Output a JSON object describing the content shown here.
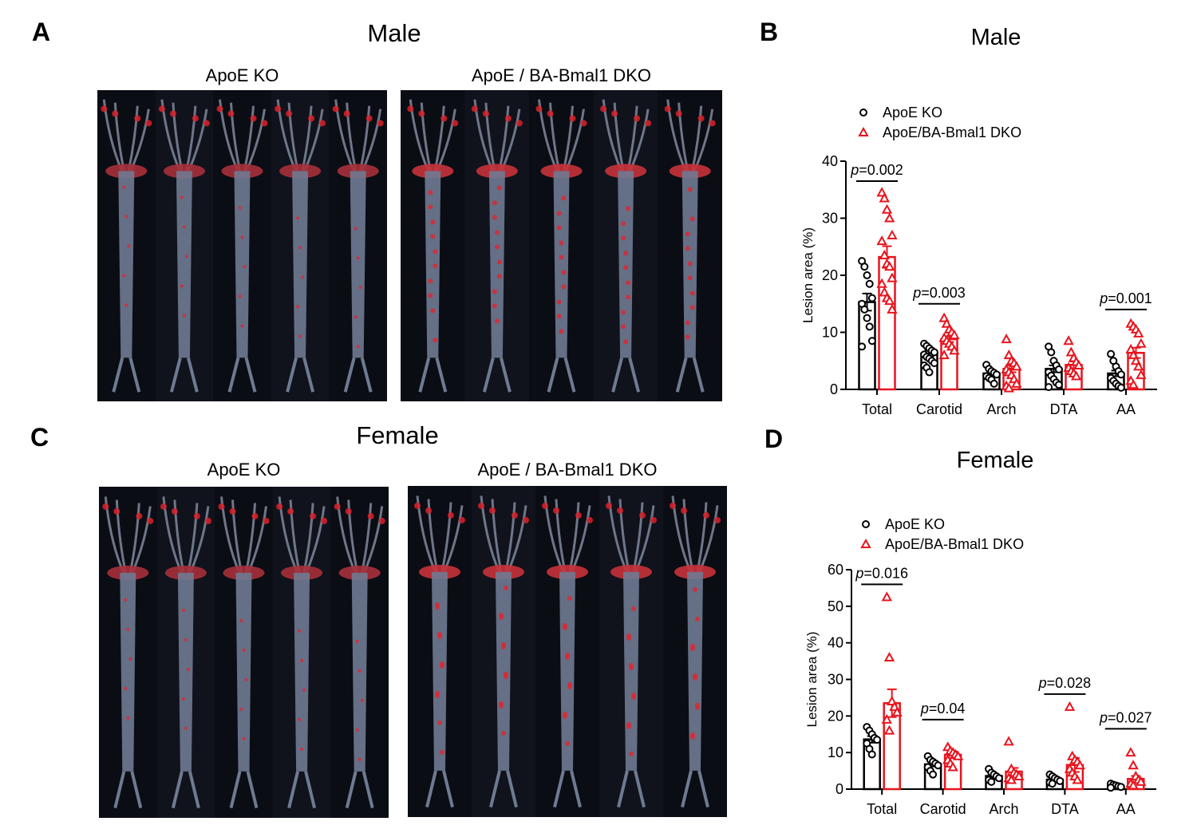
{
  "panels": {
    "A": {
      "letter": "A",
      "title": "Male",
      "left_label": "ApoE KO",
      "right_label": "ApoE / BA-Bmal1 DKO"
    },
    "B": {
      "letter": "B"
    },
    "C": {
      "letter": "C",
      "title": "Female",
      "left_label": "ApoE KO",
      "right_label": "ApoE / BA-Bmal1 DKO"
    },
    "D": {
      "letter": "D"
    }
  },
  "colors": {
    "ko": "#000000",
    "dko": "#e8141e",
    "photo_bg": "#0d0f17"
  },
  "chart_data": [
    {
      "panel": "B",
      "type": "bar",
      "title": "Male",
      "xlabel": "",
      "ylabel": "Lesion area (%)",
      "ylim": [
        0,
        40
      ],
      "yticks": [
        0,
        10,
        20,
        30,
        40
      ],
      "categories": [
        "Total",
        "Carotid",
        "Arch",
        "DTA",
        "AA"
      ],
      "legend": {
        "position": "top-left",
        "entries": [
          "ApoE KO",
          "ApoE/BA-Bmal1 DKO"
        ]
      },
      "series": [
        {
          "name": "ApoE KO",
          "color": "#000000",
          "marker": "circle",
          "values": [
            15.3,
            6.3,
            2.8,
            3.6,
            2.8
          ],
          "sem": [
            1.5,
            0.5,
            0.3,
            0.6,
            0.5
          ],
          "points": [
            [
              22.5,
              21.5,
              20.0,
              18.5,
              16.0,
              15.0,
              14.0,
              12.5,
              11.0,
              8.5,
              7.5
            ],
            [
              8.0,
              7.6,
              7.2,
              6.8,
              6.5,
              6.1,
              5.7,
              5.4,
              5.0,
              4.6,
              4.2,
              3.8,
              3.0
            ],
            [
              4.3,
              3.6,
              3.2,
              2.9,
              2.6,
              2.3,
              2.0,
              1.7,
              1.0
            ],
            [
              7.5,
              6.5,
              5.0,
              4.2,
              3.5,
              3.0,
              2.4,
              1.8,
              1.2,
              0.8,
              0.4
            ],
            [
              6.2,
              5.0,
              4.0,
              3.2,
              2.6,
              2.0,
              1.5,
              1.0,
              0.6,
              0.3
            ]
          ]
        },
        {
          "name": "ApoE/BA-Bmal1 DKO",
          "color": "#e8141e",
          "marker": "triangle",
          "values": [
            23.2,
            8.8,
            3.6,
            4.3,
            6.4
          ],
          "sem": [
            1.9,
            0.5,
            0.6,
            0.6,
            0.9
          ],
          "points": [
            [
              34.5,
              33.5,
              31.5,
              30.0,
              27.0,
              26.0,
              23.5,
              22.0,
              21.5,
              19.5,
              18.5,
              17.0,
              16.0,
              15.5,
              14.0
            ],
            [
              12.5,
              11.5,
              10.5,
              10.0,
              9.5,
              9.0,
              8.5,
              8.0,
              7.5,
              6.8,
              6.0
            ],
            [
              8.8,
              6.0,
              5.0,
              4.6,
              4.0,
              3.5,
              3.0,
              2.5,
              1.8,
              1.0,
              0.6,
              0.2
            ],
            [
              8.5,
              6.5,
              5.5,
              4.8,
              4.2,
              3.8,
              3.2,
              2.8,
              2.3
            ],
            [
              11.5,
              11.0,
              10.5,
              9.8,
              8.0,
              7.0,
              6.0,
              5.0,
              4.0,
              2.5,
              1.5,
              0.8
            ]
          ]
        }
      ],
      "annotations": [
        {
          "category": "Total",
          "text_p": "p",
          "text_value": "=0.002",
          "y": 36.5
        },
        {
          "category": "Carotid",
          "text_p": "p",
          "text_value": "=0.003",
          "y": 15.0
        },
        {
          "category": "AA",
          "text_p": "p",
          "text_value": "=0.001",
          "y": 14.0
        }
      ]
    },
    {
      "panel": "D",
      "type": "bar",
      "title": "Female",
      "xlabel": "",
      "ylabel": "Lesion area (%)",
      "ylim": [
        0,
        60
      ],
      "yticks": [
        0,
        10,
        20,
        30,
        40,
        50,
        60
      ],
      "categories": [
        "Total",
        "Carotid",
        "Arch",
        "DTA",
        "AA"
      ],
      "legend": {
        "position": "top-left",
        "entries": [
          "ApoE KO",
          "ApoE/BA-Bmal1 DKO"
        ]
      },
      "series": [
        {
          "name": "ApoE KO",
          "color": "#000000",
          "marker": "circle",
          "values": [
            13.6,
            6.8,
            3.6,
            2.6,
            0.9
          ],
          "sem": [
            0.9,
            0.6,
            0.4,
            0.3,
            0.1
          ],
          "points": [
            [
              17.0,
              16.0,
              15.0,
              14.0,
              13.5,
              12.5,
              11.0,
              9.5
            ],
            [
              9.0,
              8.0,
              7.5,
              7.0,
              6.5,
              6.0,
              5.0,
              4.0
            ],
            [
              5.5,
              4.5,
              4.0,
              3.5,
              3.0,
              2.5,
              2.0
            ],
            [
              4.0,
              3.5,
              3.0,
              2.6,
              2.2,
              1.8,
              1.5
            ],
            [
              1.5,
              1.2,
              1.0,
              0.8,
              0.6,
              0.4
            ]
          ]
        },
        {
          "name": "ApoE/BA-Bmal1 DKO",
          "color": "#e8141e",
          "marker": "triangle",
          "values": [
            23.5,
            9.4,
            4.8,
            6.6,
            2.8
          ],
          "sem": [
            3.8,
            0.9,
            1.0,
            1.9,
            0.8
          ],
          "points": [
            [
              52.5,
              36.0,
              24.0,
              22.5,
              21.0,
              19.0,
              16.0
            ],
            [
              11.5,
              10.5,
              10.0,
              9.5,
              9.0,
              8.0,
              7.0,
              6.0
            ],
            [
              13.0,
              5.5,
              4.5,
              4.0,
              3.5,
              3.0,
              2.5
            ],
            [
              22.5,
              9.0,
              8.0,
              7.5,
              6.5,
              5.5,
              4.5,
              3.5,
              2.5
            ],
            [
              10.0,
              6.5,
              3.5,
              2.5,
              2.0,
              1.5,
              1.0
            ]
          ]
        }
      ],
      "annotations": [
        {
          "category": "Total",
          "text_p": "p",
          "text_value": "=0.016",
          "y": 56.0
        },
        {
          "category": "Carotid",
          "text_p": "p",
          "text_value": "=0.04",
          "y": 19.0
        },
        {
          "category": "DTA",
          "text_p": "p",
          "text_value": "=0.028",
          "y": 26.0
        },
        {
          "category": "AA",
          "text_p": "p",
          "text_value": "=0.027",
          "y": 16.5
        }
      ]
    }
  ]
}
